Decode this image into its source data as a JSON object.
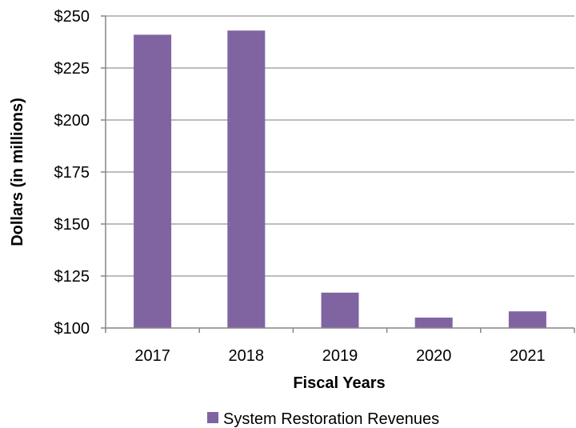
{
  "chart_data": {
    "type": "bar",
    "categories": [
      "2017",
      "2018",
      "2019",
      "2020",
      "2021"
    ],
    "series": [
      {
        "name": "System Restoration Revenues",
        "values": [
          241,
          243,
          117,
          105,
          108
        ],
        "color": "#8064a2"
      }
    ],
    "xlabel": "Fiscal Years",
    "ylabel": "Dollars (in millions)",
    "ylim": [
      100,
      250
    ],
    "yticks": [
      100,
      125,
      150,
      175,
      200,
      225,
      250
    ],
    "ytick_labels": [
      "$100",
      "$125",
      "$150",
      "$175",
      "$200",
      "$225",
      "$250"
    ],
    "grid": true,
    "legend": "bottom"
  }
}
